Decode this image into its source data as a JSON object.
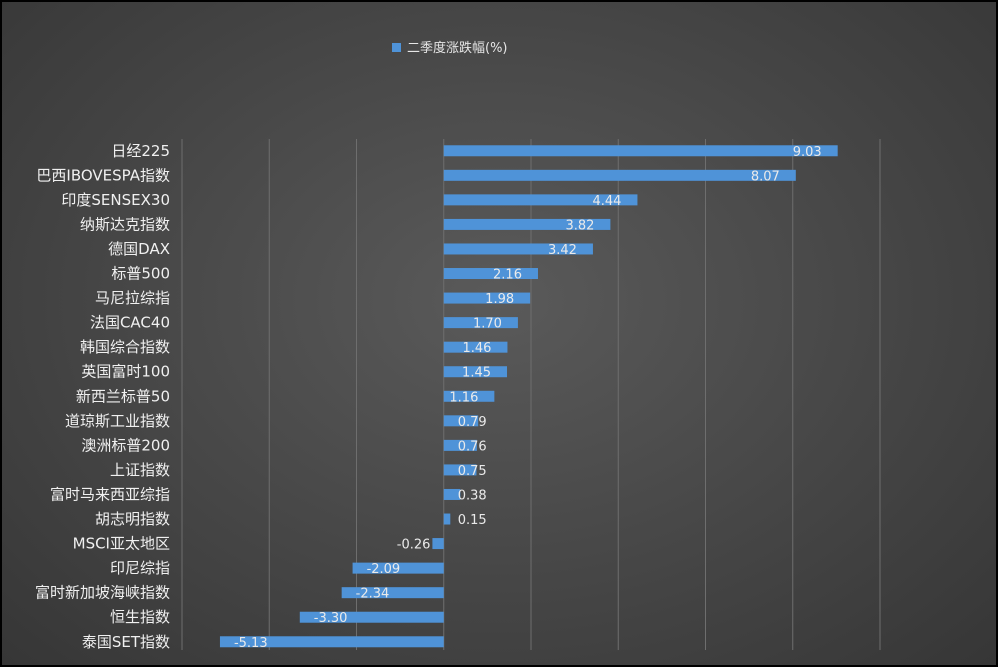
{
  "chart_data": {
    "type": "bar",
    "orientation": "horizontal",
    "categories": [
      "日经225",
      "巴西IBOVESPA指数",
      "印度SENSEX30",
      "纳斯达克指数",
      "德国DAX",
      "标普500",
      "马尼拉综指",
      "法国CAC40",
      "韩国综合指数",
      "英国富时100",
      "新西兰标普50",
      "道琼斯工业指数",
      "澳洲标普200",
      "上证指数",
      "富时马来西亚综指",
      "胡志明指数",
      "MSCI亚太地区",
      "印尼综指",
      "富时新加坡海峡指数",
      "恒生指数",
      "泰国SET指数"
    ],
    "series": [
      {
        "name": "二季度涨跌幅(%)",
        "values": [
          9.03,
          8.07,
          4.44,
          3.82,
          3.42,
          2.16,
          1.98,
          1.7,
          1.46,
          1.45,
          1.16,
          0.79,
          0.76,
          0.75,
          0.38,
          0.15,
          -0.26,
          -2.09,
          -2.34,
          -3.3,
          -5.13
        ],
        "labels": [
          "9.03",
          "8.07",
          "4.44",
          "3.82",
          "3.42",
          "2.16",
          "1.98",
          "1.70",
          "1.46",
          "1.45",
          "1.16",
          "0.79",
          "0.76",
          "0.75",
          "0.38",
          "0.15",
          "-0.26",
          "-2.09",
          "-2.34",
          "-3.30",
          "-5.13"
        ],
        "color": "#4f93d8"
      }
    ],
    "xlim": [
      -6,
      10
    ],
    "x_gridlines": [
      -6,
      -4,
      -2,
      0,
      2,
      4,
      6,
      8,
      10
    ],
    "grid": true,
    "legend_position": "top-center",
    "background_color": "#464646",
    "text_color": "#f0f0f0"
  }
}
